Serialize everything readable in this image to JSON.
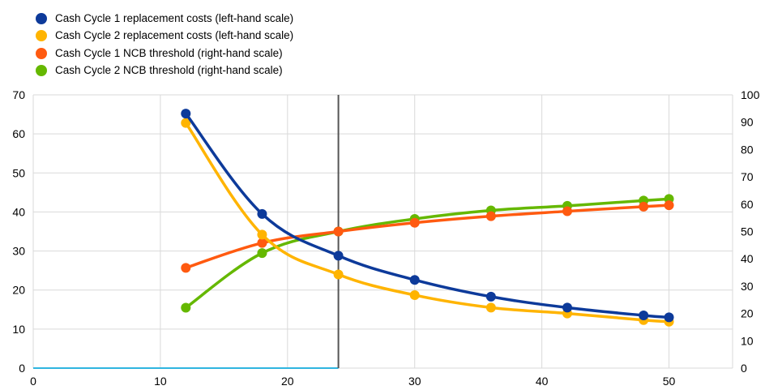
{
  "chart_data": {
    "type": "line",
    "title": "",
    "xlabel": "",
    "ylabel": "",
    "xlim": [
      0,
      55
    ],
    "ylim_left": [
      0,
      70
    ],
    "ylim_right": [
      0,
      100
    ],
    "x_ticks": [
      0,
      10,
      20,
      30,
      40,
      50
    ],
    "y_ticks_left": [
      0,
      10,
      20,
      30,
      40,
      50,
      60,
      70
    ],
    "y_ticks_right": [
      0,
      10,
      20,
      30,
      40,
      50,
      60,
      70,
      80,
      90,
      100
    ],
    "grid": true,
    "legend_position": "top-left",
    "vertical_marker_x": 24,
    "baseline_segment": {
      "x_start": 0,
      "x_end": 24,
      "y": 0,
      "color": "#2fb5e0"
    },
    "series": [
      {
        "name": "Cash Cycle 1 replacement costs (left-hand scale)",
        "axis": "left",
        "color": "#0d3a9a",
        "x": [
          12,
          18,
          24,
          30,
          36,
          42,
          48,
          50
        ],
        "values": [
          65.2,
          39.5,
          28.8,
          22.6,
          18.3,
          15.5,
          13.5,
          13.0
        ]
      },
      {
        "name": "Cash Cycle 2 replacement costs (left-hand scale)",
        "axis": "left",
        "color": "#ffb400",
        "x": [
          12,
          18,
          24,
          30,
          36,
          42,
          48,
          50
        ],
        "values": [
          62.8,
          34.2,
          24.0,
          18.7,
          15.5,
          14.0,
          12.3,
          11.9
        ]
      },
      {
        "name": "Cash Cycle 1 NCB threshold (right-hand scale)",
        "axis": "right",
        "color": "#ff5a10",
        "x": [
          12,
          18,
          24,
          30,
          36,
          42,
          48,
          50
        ],
        "values": [
          36.7,
          45.8,
          50.0,
          53.2,
          55.6,
          57.4,
          59.1,
          59.6
        ]
      },
      {
        "name": "Cash Cycle 2 NCB threshold (right-hand scale)",
        "axis": "right",
        "color": "#65b800",
        "x": [
          12,
          18,
          24,
          30,
          36,
          42,
          48,
          50
        ],
        "values": [
          22.1,
          42.1,
          50.0,
          54.6,
          57.7,
          59.4,
          61.3,
          61.9
        ]
      }
    ]
  }
}
